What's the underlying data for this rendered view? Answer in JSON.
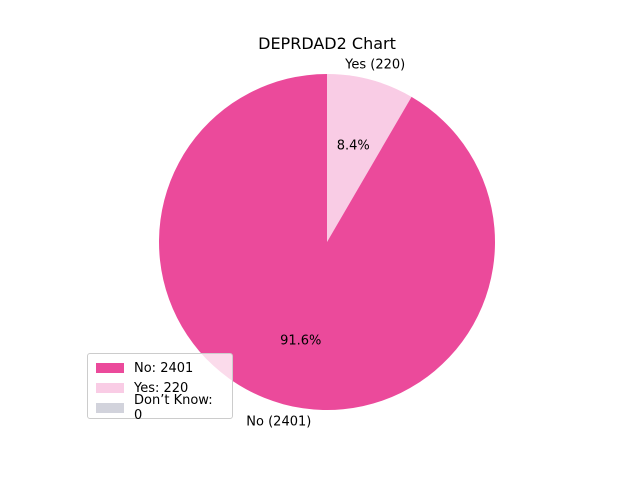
{
  "chart_data": {
    "type": "pie",
    "title": "DEPRDAD2 Chart",
    "slices": [
      {
        "name": "Yes",
        "value": 220,
        "label": "Yes (220)",
        "pct_label": "8.4%",
        "color": "#f9cce5"
      },
      {
        "name": "No",
        "value": 2401,
        "label": "No (2401)",
        "pct_label": "91.6%",
        "color": "#eb4a9b"
      }
    ],
    "legend": {
      "position": "lower-left",
      "entries": [
        {
          "label": "No: 2401",
          "color": "#eb4a9b"
        },
        {
          "label": "Yes: 220",
          "color": "#f9cce5"
        },
        {
          "label": "Don’t Know: 0",
          "color": "#d2d3dc"
        }
      ]
    }
  }
}
